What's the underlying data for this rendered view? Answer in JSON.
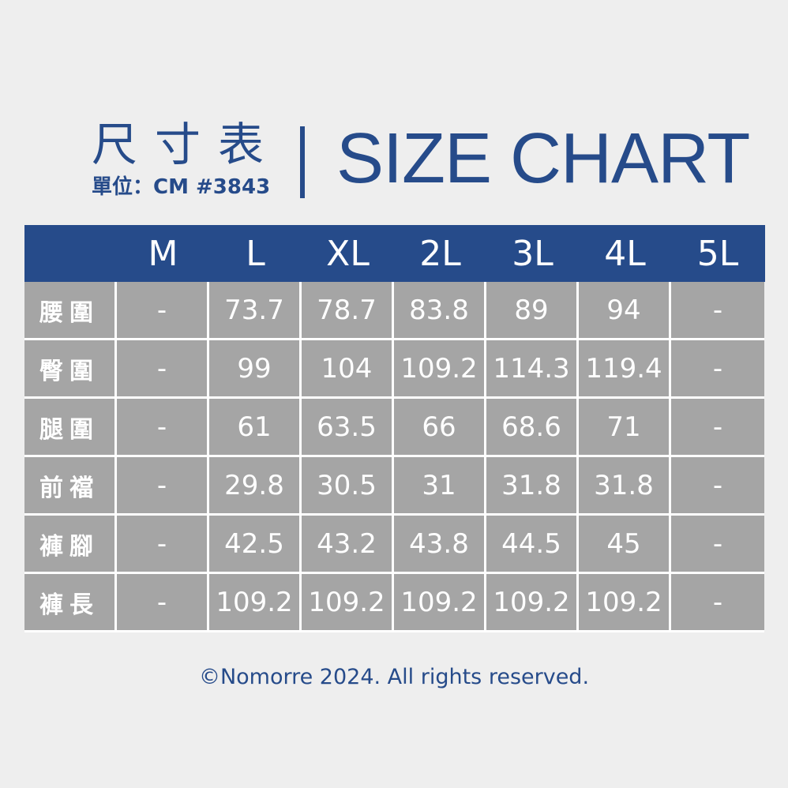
{
  "title_zh": "尺寸表",
  "unit": "單位：CM #3843",
  "title_en": "SIZE CHART",
  "colors": {
    "brand": "#264b8a",
    "cell": "#a5a5a5",
    "background": "#eeeeee"
  },
  "table": {
    "columns": [
      "",
      "M",
      "L",
      "XL",
      "2L",
      "3L",
      "4L",
      "5L"
    ],
    "rows": [
      {
        "label": "腰圍",
        "values": [
          "-",
          "73.7",
          "78.7",
          "83.8",
          "89",
          "94",
          "-"
        ]
      },
      {
        "label": "臀圍",
        "values": [
          "-",
          "99",
          "104",
          "109.2",
          "114.3",
          "119.4",
          "-"
        ]
      },
      {
        "label": "腿圍",
        "values": [
          "-",
          "61",
          "63.5",
          "66",
          "68.6",
          "71",
          "-"
        ]
      },
      {
        "label": "前襠",
        "values": [
          "-",
          "29.8",
          "30.5",
          "31",
          "31.8",
          "31.8",
          "-"
        ]
      },
      {
        "label": "褲腳",
        "values": [
          "-",
          "42.5",
          "43.2",
          "43.8",
          "44.5",
          "45",
          "-"
        ]
      },
      {
        "label": "褲長",
        "values": [
          "-",
          "109.2",
          "109.2",
          "109.2",
          "109.2",
          "109.2",
          "-"
        ]
      }
    ]
  },
  "footer": "©Nomorre 2024. All rights reserved."
}
